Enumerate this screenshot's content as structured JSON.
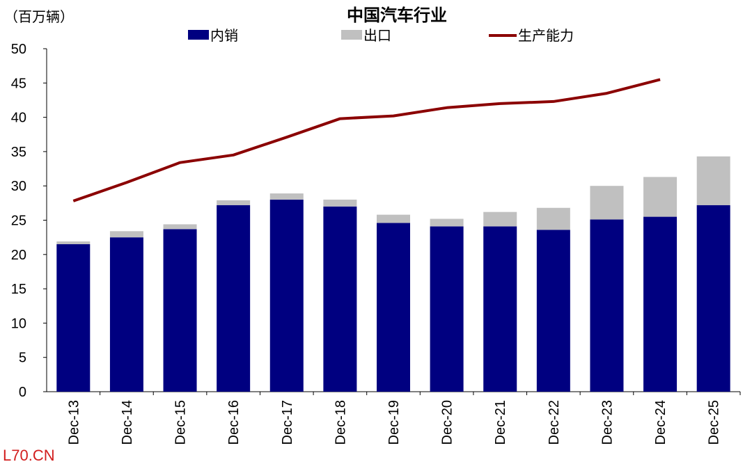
{
  "chart_data": {
    "type": "bar",
    "stacked": true,
    "title": "中国汽车行业",
    "ylabel": "（百万辆）",
    "xlabel": "",
    "ylim": [
      0,
      50
    ],
    "yticks": [
      0,
      5,
      10,
      15,
      20,
      25,
      30,
      35,
      40,
      45,
      50
    ],
    "grid": false,
    "legend_position": "top",
    "categories": [
      "Dec-13",
      "Dec-14",
      "Dec-15",
      "Dec-16",
      "Dec-17",
      "Dec-18",
      "Dec-19",
      "Dec-20",
      "Dec-21",
      "Dec-22",
      "Dec-23",
      "Dec-24",
      "Dec-25"
    ],
    "series": [
      {
        "name": "内销",
        "type": "bar",
        "color": "#000080",
        "values": [
          21.5,
          22.5,
          23.7,
          27.2,
          28.0,
          27.0,
          24.6,
          24.1,
          24.1,
          23.6,
          25.1,
          25.5,
          27.2
        ]
      },
      {
        "name": "出口",
        "type": "bar",
        "color": "#C0C0C0",
        "values": [
          0.4,
          0.9,
          0.7,
          0.7,
          0.9,
          1.0,
          1.2,
          1.1,
          2.1,
          3.2,
          4.9,
          5.8,
          7.1
        ]
      },
      {
        "name": "生产能力",
        "type": "line",
        "color": "#8B0000",
        "values": [
          27.8,
          30.5,
          33.4,
          34.5,
          37.1,
          39.8,
          40.2,
          41.4,
          42.0,
          42.3,
          43.5,
          45.5,
          null
        ]
      }
    ]
  },
  "watermark": "L70.CN"
}
